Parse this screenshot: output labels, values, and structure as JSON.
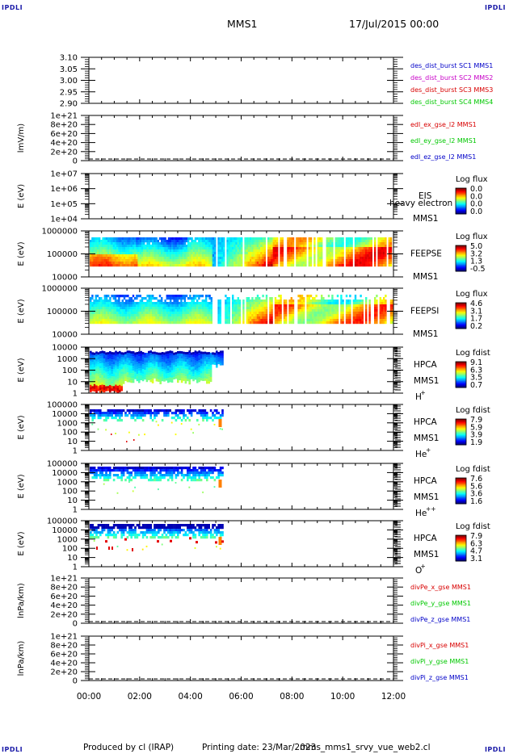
{
  "header": {
    "corner_label": "IPDLI",
    "spacecraft": "MMS1",
    "date_time": "17/Jul/2015 00:00"
  },
  "footer": {
    "produced_by": "Produced by cl (IRAP)",
    "printing_date": "Printing date: 23/Mar/2023",
    "script_name": "mms_mms1_srvy_vue_web2.cl"
  },
  "time_axis": {
    "ticks": [
      "00:00",
      "02:00",
      "04:00",
      "06:00",
      "08:00",
      "10:00",
      "12:00"
    ],
    "range_hours": [
      0,
      12
    ]
  },
  "colors": {
    "mms1": "#0000c8",
    "mms2": "#c800c8",
    "mms3": "#d80000",
    "mms4": "#00c800",
    "x_comp": "#d80000",
    "y_comp": "#00c800",
    "z_comp": "#0000c8"
  },
  "chart_data": [
    {
      "id": "burst",
      "type": "line",
      "ylabel": "",
      "yticks": [
        "3.10",
        "3.05",
        "3.00",
        "2.95",
        "2.90"
      ],
      "ylim": [
        2.9,
        3.1
      ],
      "series": [
        {
          "name": "des_dist_burst SC1 MMS1",
          "color": "#0000c8",
          "values": []
        },
        {
          "name": "des_dist_burst SC2 MMS2",
          "color": "#c800c8",
          "values": []
        },
        {
          "name": "des_dist_burst SC3 MMS3",
          "color": "#d80000",
          "values": []
        },
        {
          "name": "des_dist_burst SC4 MMS4",
          "color": "#00c800",
          "values": []
        }
      ]
    },
    {
      "id": "efield",
      "type": "line",
      "ylabel": "lmV/m)",
      "yticks": [
        "1e+21",
        "8e+20",
        "6e+20",
        "4e+20",
        "2e+20",
        "0"
      ],
      "ylim": [
        0,
        1e+21
      ],
      "zero_line": true,
      "series": [
        {
          "name": "edl_ex_gse_l2 MMS1",
          "color": "#d80000",
          "values": []
        },
        {
          "name": "edl_ey_gse_l2 MMS1",
          "color": "#00c800",
          "values": []
        },
        {
          "name": "edl_ez_gse_l2 MMS1",
          "color": "#0000c8",
          "values": []
        }
      ]
    },
    {
      "id": "eis",
      "type": "heatmap",
      "ylabel": "E (eV)",
      "yticks": [
        "1e+07",
        "1e+06",
        "1e+05",
        "1e+04"
      ],
      "ylim": [
        10000,
        10000000
      ],
      "log_scale": true,
      "instrument": "EIS",
      "sub_label": "heavy electron to",
      "sc_label": "MMS1",
      "species": "",
      "colorbar_title": "Log flux",
      "colorbar_ticks": [
        "0.0",
        "0.0",
        "0.0",
        "0.0"
      ],
      "profile": "eis"
    },
    {
      "id": "feepse",
      "type": "heatmap",
      "ylabel": "E (eV)",
      "yticks": [
        "1000000",
        "100000",
        "10000"
      ],
      "ylim": [
        10000,
        1000000
      ],
      "log_scale": true,
      "instrument": "FEEPSE",
      "sub_label": "",
      "sc_label": "MMS1",
      "species": "",
      "colorbar_title": "Log flux",
      "colorbar_ticks": [
        "5.0",
        "3.2",
        "1.3",
        "-0.5"
      ],
      "profile": "feepse"
    },
    {
      "id": "feepsi",
      "type": "heatmap",
      "ylabel": "E (eV)",
      "yticks": [
        "1000000",
        "100000",
        "10000"
      ],
      "ylim": [
        10000,
        1000000
      ],
      "log_scale": true,
      "instrument": "FEEPSI",
      "sub_label": "",
      "sc_label": "MMS1",
      "species": "",
      "colorbar_title": "Log flux",
      "colorbar_ticks": [
        "4.6",
        "3.1",
        "1.7",
        "0.2"
      ],
      "profile": "feepsi"
    },
    {
      "id": "hpca_h",
      "type": "heatmap",
      "ylabel": "E (eV)",
      "yticks": [
        "10000",
        "1000",
        "100",
        "10",
        "1"
      ],
      "ylim": [
        1,
        40000
      ],
      "log_scale": true,
      "instrument": "HPCA",
      "sub_label": "",
      "sc_label": "MMS1",
      "species": "H",
      "species_sup": "+",
      "colorbar_title": "Log fdist",
      "colorbar_ticks": [
        "9.1",
        "6.3",
        "3.5",
        "0.7"
      ],
      "profile": "hpca_h"
    },
    {
      "id": "hpca_he",
      "type": "heatmap",
      "ylabel": "E (eV)",
      "yticks": [
        "100000",
        "10000",
        "1000",
        "100",
        "10",
        "1"
      ],
      "ylim": [
        1,
        100000
      ],
      "log_scale": true,
      "instrument": "HPCA",
      "sub_label": "",
      "sc_label": "MMS1",
      "species": "He",
      "species_sup": "+",
      "colorbar_title": "Log fdist",
      "colorbar_ticks": [
        "7.9",
        "5.9",
        "3.9",
        "1.9"
      ],
      "profile": "hpca_he"
    },
    {
      "id": "hpca_he2",
      "type": "heatmap",
      "ylabel": "E (eV)",
      "yticks": [
        "100000",
        "10000",
        "1000",
        "100",
        "10",
        "1"
      ],
      "ylim": [
        1,
        100000
      ],
      "log_scale": true,
      "instrument": "HPCA",
      "sub_label": "",
      "sc_label": "MMS1",
      "species": "He",
      "species_sup": "++",
      "colorbar_title": "Log fdist",
      "colorbar_ticks": [
        "7.6",
        "5.6",
        "3.6",
        "1.6"
      ],
      "profile": "hpca_he2"
    },
    {
      "id": "hpca_o",
      "type": "heatmap",
      "ylabel": "E (eV)",
      "yticks": [
        "100000",
        "10000",
        "1000",
        "100",
        "10",
        "1"
      ],
      "ylim": [
        1,
        100000
      ],
      "log_scale": true,
      "instrument": "HPCA",
      "sub_label": "",
      "sc_label": "MMS1",
      "species": "O",
      "species_sup": "+",
      "colorbar_title": "Log fdist",
      "colorbar_ticks": [
        "7.9",
        "6.3",
        "4.7",
        "3.1"
      ],
      "profile": "hpca_o"
    },
    {
      "id": "divpe",
      "type": "line",
      "ylabel": "lnPa/km)",
      "yticks": [
        "1e+21",
        "8e+20",
        "6e+20",
        "4e+20",
        "2e+20",
        "0"
      ],
      "ylim": [
        0,
        1e+21
      ],
      "zero_line": true,
      "series": [
        {
          "name": "divPe_x_gse MMS1",
          "color": "#d80000",
          "values": []
        },
        {
          "name": "divPe_y_gse MMS1",
          "color": "#00c800",
          "values": []
        },
        {
          "name": "divPe_z_gse MMS1",
          "color": "#0000c8",
          "values": []
        }
      ]
    },
    {
      "id": "divpi",
      "type": "line",
      "ylabel": "lnPa/km)",
      "yticks": [
        "1e+21",
        "8e+20",
        "6e+20",
        "4e+20",
        "2e+20",
        "0"
      ],
      "ylim": [
        0,
        1e+21
      ],
      "zero_line": true,
      "series": [
        {
          "name": "divPi_x_gse MMS1",
          "color": "#d80000",
          "values": []
        },
        {
          "name": "divPi_y_gse MMS1",
          "color": "#00c800",
          "values": []
        },
        {
          "name": "divPi_z_gse MMS1",
          "color": "#0000c8",
          "values": []
        }
      ]
    }
  ]
}
